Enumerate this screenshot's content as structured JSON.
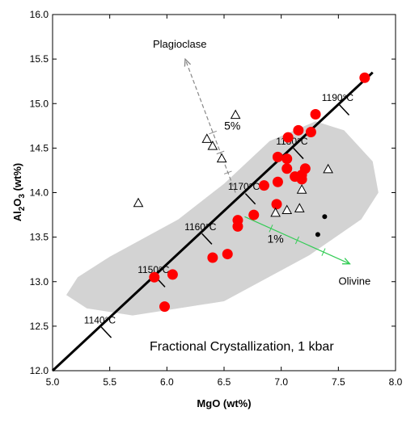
{
  "chart_data": {
    "type": "scatter",
    "title": "",
    "caption": "Fractional Crystallization, 1 kbar",
    "xlabel": "MgO (wt%)",
    "ylabel_parts": [
      "Al",
      "2",
      "O",
      "3",
      " (wt%)"
    ],
    "xlim": [
      5.0,
      8.0
    ],
    "ylim": [
      12.0,
      16.0
    ],
    "xticks": [
      "5.0",
      "5.5",
      "6.0",
      "6.5",
      "7.0",
      "7.5",
      "8.0"
    ],
    "yticks": [
      "12.0",
      "12.5",
      "13.0",
      "13.5",
      "14.0",
      "14.5",
      "15.0",
      "15.5",
      "16.0"
    ],
    "grid": false,
    "colors": {
      "red": "#ff0000",
      "field": "#d3d3d3",
      "olivine_arrow": "#33cc55",
      "plag_arrow": "#888888",
      "line": "#000000"
    },
    "series": [
      {
        "marker": "filled-circle-red",
        "points": [
          [
            5.98,
            12.72
          ],
          [
            5.89,
            13.05
          ],
          [
            6.05,
            13.08
          ],
          [
            6.4,
            13.27
          ],
          [
            6.53,
            13.31
          ],
          [
            6.62,
            13.62
          ],
          [
            6.62,
            13.69
          ],
          [
            6.76,
            13.75
          ],
          [
            6.85,
            14.08
          ],
          [
            6.97,
            14.12
          ],
          [
            6.96,
            13.87
          ],
          [
            7.05,
            14.38
          ],
          [
            7.05,
            14.27
          ],
          [
            7.12,
            14.18
          ],
          [
            7.18,
            14.15
          ],
          [
            7.18,
            14.2
          ],
          [
            7.21,
            14.27
          ],
          [
            6.97,
            14.4
          ],
          [
            7.15,
            14.7
          ],
          [
            7.26,
            14.68
          ],
          [
            7.3,
            14.88
          ],
          [
            7.06,
            14.62
          ],
          [
            7.73,
            15.29
          ]
        ]
      },
      {
        "marker": "open-triangle",
        "points": [
          [
            5.75,
            13.88
          ],
          [
            6.35,
            14.6
          ],
          [
            6.4,
            14.52
          ],
          [
            6.48,
            14.38
          ],
          [
            6.6,
            14.87
          ],
          [
            6.95,
            13.77
          ],
          [
            7.05,
            13.8
          ],
          [
            7.16,
            13.82
          ],
          [
            7.18,
            14.03
          ],
          [
            7.41,
            14.26
          ]
        ]
      },
      {
        "marker": "small-dot-black",
        "points": [
          [
            7.38,
            13.73
          ],
          [
            7.32,
            13.53
          ]
        ]
      }
    ],
    "liquid_line": {
      "points": [
        [
          5.0,
          12.0
        ],
        [
          7.8,
          15.35
        ]
      ],
      "temperature_labels": [
        {
          "label": "1140°C",
          "at": [
            5.47,
            12.43
          ]
        },
        {
          "label": "1150°C",
          "at": [
            5.94,
            13.0
          ]
        },
        {
          "label": "1160°C",
          "at": [
            6.35,
            13.48
          ]
        },
        {
          "label": "1170°C",
          "at": [
            6.73,
            13.93
          ]
        },
        {
          "label": "1180°C",
          "at": [
            7.15,
            14.44
          ]
        },
        {
          "label": "1190°C",
          "at": [
            7.55,
            14.93
          ]
        }
      ]
    },
    "shaded_field": [
      [
        5.7,
        12.62
      ],
      [
        6.5,
        12.78
      ],
      [
        7.25,
        13.3
      ],
      [
        7.7,
        13.7
      ],
      [
        7.85,
        14.0
      ],
      [
        7.8,
        14.35
      ],
      [
        7.55,
        14.7
      ],
      [
        7.3,
        14.8
      ],
      [
        6.9,
        14.58
      ],
      [
        6.5,
        14.1
      ],
      [
        6.1,
        13.7
      ],
      [
        5.5,
        13.28
      ],
      [
        5.22,
        13.05
      ],
      [
        5.12,
        12.85
      ],
      [
        5.3,
        12.7
      ]
    ],
    "annotations": [
      {
        "text": "Plagioclase",
        "arrow_from": [
          6.6,
          14.0
        ],
        "arrow_to": [
          6.16,
          15.5
        ],
        "tick_label": "5%"
      },
      {
        "text": "Olivine",
        "arrow_from": [
          6.68,
          13.73
        ],
        "arrow_to": [
          7.6,
          13.2
        ],
        "tick_label": "1%"
      }
    ]
  }
}
